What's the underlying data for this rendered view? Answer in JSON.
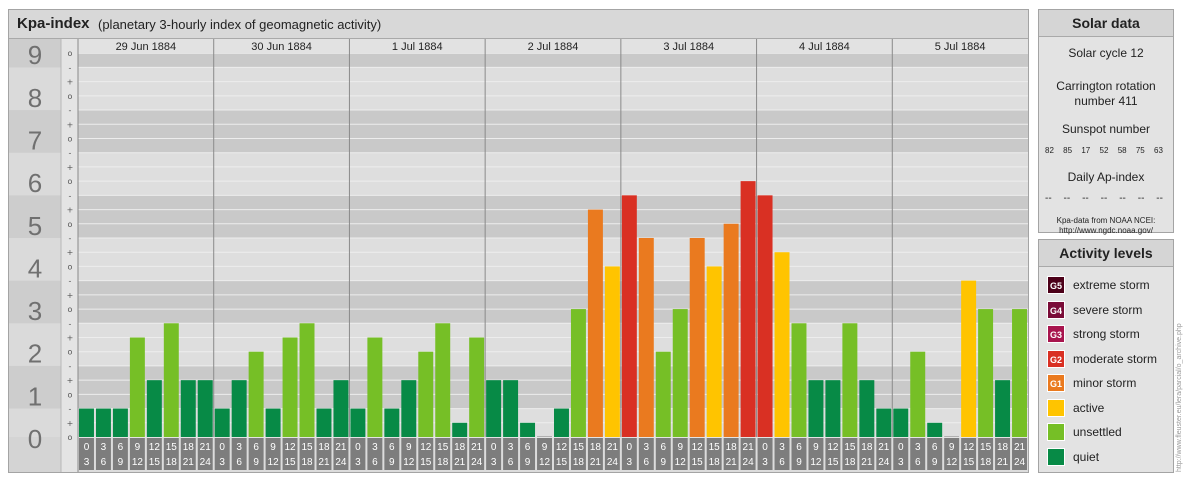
{
  "main": {
    "title": "Kpa-index",
    "subtitle": "(planetary 3-hourly index of geomagnetic activity)"
  },
  "solar": {
    "header": "Solar data",
    "cycle": "Solar cycle 12",
    "carrington_1": "Carrington rotation",
    "carrington_2": "number 411",
    "sunspot_label": "Sunspot number",
    "sunspot_values": [
      "82",
      "85",
      "17",
      "52",
      "58",
      "75",
      "63"
    ],
    "ap_label": "Daily Ap-index",
    "ap_values": [
      "--",
      "--",
      "--",
      "--",
      "--",
      "--",
      "--"
    ],
    "source_1": "Kpa-data from NOAA NCEI:",
    "source_2": "http://www.ngdc.noaa.gov/"
  },
  "levels": {
    "header": "Activity levels",
    "items": [
      {
        "badge": "G5",
        "label": "extreme storm",
        "color": "#4c0018"
      },
      {
        "badge": "G4",
        "label": "severe storm",
        "color": "#7a0c38"
      },
      {
        "badge": "G3",
        "label": "strong storm",
        "color": "#a8154e"
      },
      {
        "badge": "G2",
        "label": "moderate storm",
        "color": "#d93023"
      },
      {
        "badge": "G1",
        "label": "minor storm",
        "color": "#ea7a1f"
      },
      {
        "badge": "",
        "label": "active",
        "color": "#ffc400"
      },
      {
        "badge": "",
        "label": "unsettled",
        "color": "#76bf26"
      },
      {
        "badge": "",
        "label": "quiet",
        "color": "#078a46"
      }
    ]
  },
  "watermark": "http://www.fleuster.eu/lera/parcial/o_archive.php",
  "chart_data": {
    "type": "bar",
    "title": "Kpa-index",
    "subtitle": "(planetary 3-hourly index of geomagnetic activity)",
    "ylim": [
      0,
      9
    ],
    "y_ticks": [
      "0",
      "1",
      "2",
      "3",
      "4",
      "5",
      "6",
      "7",
      "8",
      "9"
    ],
    "minor_marks": [
      "-",
      "o",
      "+"
    ],
    "days": [
      "29 Jun 1884",
      "30 Jun 1884",
      "1 Jul 1884",
      "2 Jul 1884",
      "3 Jul 1884",
      "4 Jul 1884",
      "5 Jul 1884"
    ],
    "interval_labels": [
      [
        "0",
        "3"
      ],
      [
        "3",
        "6"
      ],
      [
        "6",
        "9"
      ],
      [
        "9",
        "12"
      ],
      [
        "12",
        "15"
      ],
      [
        "15",
        "18"
      ],
      [
        "18",
        "21"
      ],
      [
        "21",
        "24"
      ]
    ],
    "grid": true,
    "values": [
      [
        0.667,
        0.667,
        0.667,
        2.333,
        1.333,
        2.667,
        1.333,
        1.333
      ],
      [
        0.667,
        1.333,
        2.0,
        0.667,
        2.333,
        2.667,
        0.667,
        1.333
      ],
      [
        0.667,
        2.333,
        0.667,
        1.333,
        2.0,
        2.667,
        0.333,
        2.333
      ],
      [
        1.333,
        1.333,
        0.333,
        0.0,
        0.667,
        3.0,
        5.333,
        4.0
      ],
      [
        5.667,
        4.667,
        2.0,
        3.0,
        4.667,
        4.0,
        5.0,
        6.0
      ],
      [
        5.667,
        4.333,
        2.667,
        1.333,
        1.333,
        2.667,
        1.333,
        0.667
      ],
      [
        0.667,
        2.0,
        0.333,
        0.0,
        3.667,
        3.0,
        1.333,
        3.0
      ]
    ],
    "level_colors": {
      "quiet": "#078a46",
      "unsettled": "#76bf26",
      "active": "#ffc400",
      "minor_storm": "#ea7a1f",
      "moderate_storm": "#d93023"
    }
  }
}
